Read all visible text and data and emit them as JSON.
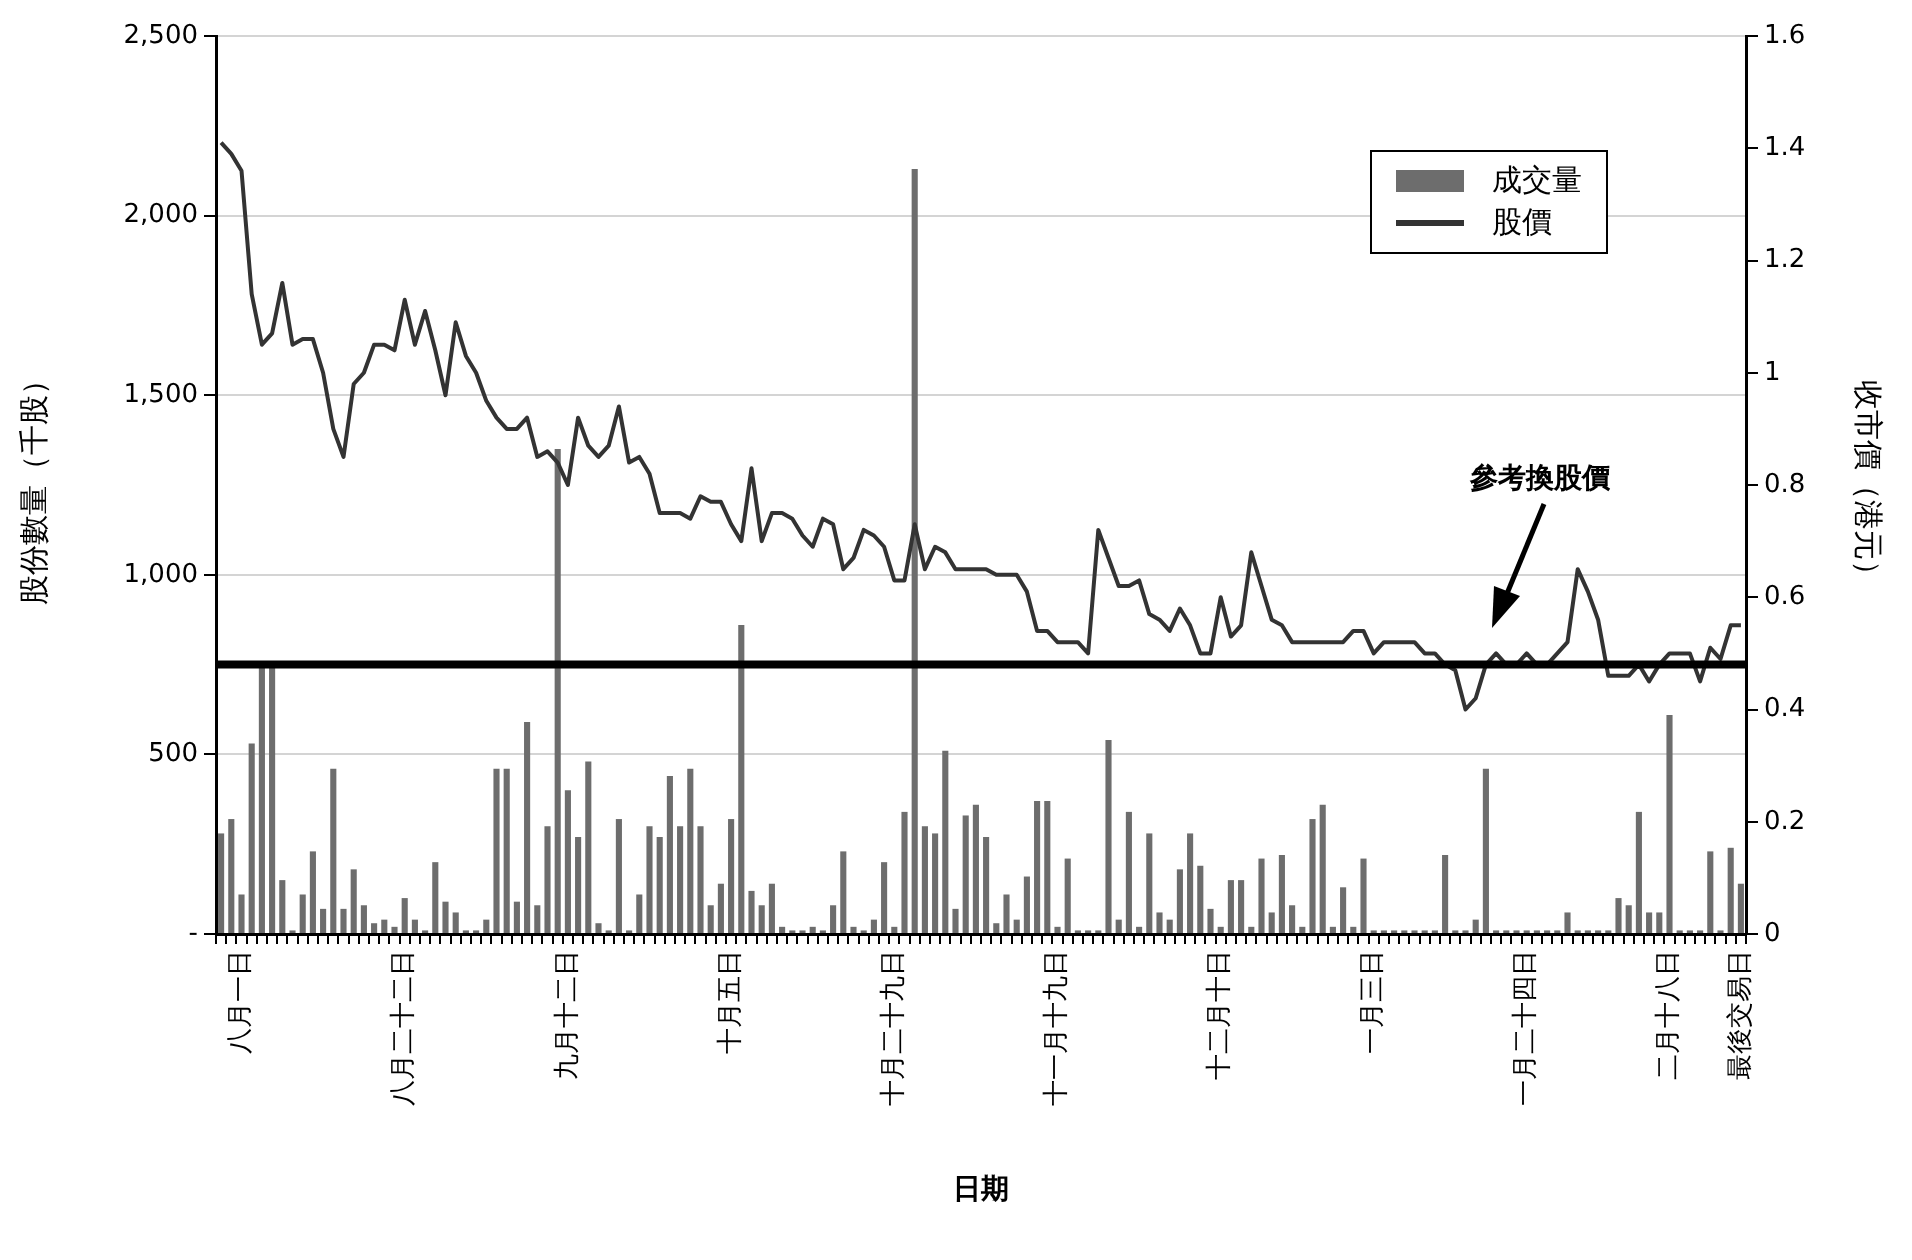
{
  "chart_data": {
    "type": "bar",
    "xlabel": "日期",
    "ylabel": "股份數量（千股）",
    "y2label": "收市價（港元）",
    "categories": [
      null,
      null,
      "八月一日",
      null,
      null,
      null,
      null,
      null,
      null,
      null,
      null,
      null,
      null,
      null,
      null,
      null,
      null,
      null,
      "八月二十二日",
      null,
      null,
      null,
      null,
      null,
      null,
      null,
      null,
      null,
      null,
      null,
      null,
      null,
      null,
      null,
      "九月十二日",
      null,
      null,
      null,
      null,
      null,
      null,
      null,
      null,
      null,
      null,
      null,
      null,
      null,
      null,
      null,
      "十月五日",
      null,
      null,
      null,
      null,
      null,
      null,
      null,
      null,
      null,
      null,
      null,
      null,
      null,
      null,
      null,
      "十月二十九日",
      null,
      null,
      null,
      null,
      null,
      null,
      null,
      null,
      null,
      null,
      null,
      null,
      null,
      null,
      null,
      "十一月十九日",
      null,
      null,
      null,
      null,
      null,
      null,
      null,
      null,
      null,
      null,
      null,
      null,
      null,
      null,
      null,
      "十二月十日",
      null,
      null,
      null,
      null,
      null,
      null,
      null,
      null,
      null,
      null,
      null,
      null,
      null,
      null,
      "一月三日",
      null,
      null,
      null,
      null,
      null,
      null,
      null,
      null,
      null,
      null,
      null,
      null,
      null,
      null,
      "一月二十四日",
      null,
      null,
      null,
      null,
      null,
      null,
      null,
      null,
      null,
      null,
      null,
      null,
      null,
      "二月十八日",
      null,
      null,
      null,
      null,
      null,
      null,
      "最後交易日"
    ],
    "series": [
      {
        "name": "成交量",
        "color": "#6d6d6d",
        "values": [
          280,
          320,
          110,
          530,
          750,
          750,
          150,
          10,
          110,
          230,
          70,
          460,
          70,
          180,
          80,
          30,
          40,
          20,
          100,
          40,
          10,
          200,
          90,
          60,
          10,
          10,
          40,
          460,
          460,
          90,
          590,
          80,
          300,
          1350,
          400,
          270,
          480,
          30,
          10,
          320,
          10,
          110,
          300,
          270,
          440,
          300,
          460,
          300,
          80,
          140,
          320,
          860,
          120,
          80,
          140,
          20,
          10,
          10,
          20,
          10,
          80,
          230,
          20,
          10,
          40,
          200,
          20,
          340,
          2130,
          300,
          280,
          510,
          70,
          330,
          360,
          270,
          30,
          110,
          40,
          160,
          370,
          370,
          20,
          210,
          10,
          10,
          10,
          540,
          40,
          340,
          20,
          280,
          60,
          40,
          180,
          280,
          190,
          70,
          20,
          150,
          150,
          20,
          210,
          60,
          220,
          80,
          20,
          320,
          360,
          20,
          130,
          20,
          210,
          10,
          10,
          10,
          10,
          10,
          10,
          10,
          220,
          10,
          10,
          40,
          460,
          10,
          10,
          10,
          10,
          10,
          10,
          10,
          60,
          10,
          10,
          10,
          10,
          100,
          80,
          340,
          60,
          60,
          610,
          10,
          10,
          10,
          230,
          10,
          240,
          140
        ]
      },
      {
        "name": "股價",
        "type": "line",
        "axis": "y2",
        "color": "#333333",
        "values": [
          1.41,
          1.39,
          1.36,
          1.14,
          1.05,
          1.07,
          1.16,
          1.05,
          1.06,
          1.06,
          1.0,
          0.9,
          0.85,
          0.98,
          1.0,
          1.05,
          1.05,
          1.04,
          1.13,
          1.05,
          1.11,
          1.04,
          0.96,
          1.09,
          1.03,
          1.0,
          0.95,
          0.92,
          0.9,
          0.9,
          0.92,
          0.85,
          0.86,
          0.84,
          0.8,
          0.92,
          0.87,
          0.85,
          0.87,
          0.94,
          0.84,
          0.85,
          0.82,
          0.75,
          0.75,
          0.75,
          0.74,
          0.78,
          0.77,
          0.77,
          0.73,
          0.7,
          0.83,
          0.7,
          0.75,
          0.75,
          0.74,
          0.71,
          0.69,
          0.74,
          0.73,
          0.65,
          0.67,
          0.72,
          0.71,
          0.69,
          0.63,
          0.63,
          0.73,
          0.65,
          0.69,
          0.68,
          0.65,
          0.65,
          0.65,
          0.65,
          0.64,
          0.64,
          0.64,
          0.61,
          0.54,
          0.54,
          0.52,
          0.52,
          0.52,
          0.5,
          0.72,
          0.67,
          0.62,
          0.62,
          0.63,
          0.57,
          0.56,
          0.54,
          0.58,
          0.55,
          0.5,
          0.5,
          0.6,
          0.53,
          0.55,
          0.68,
          0.62,
          0.56,
          0.55,
          0.52,
          0.52,
          0.52,
          0.52,
          0.52,
          0.52,
          0.54,
          0.54,
          0.5,
          0.52,
          0.52,
          0.52,
          0.52,
          0.5,
          0.5,
          0.48,
          0.47,
          0.4,
          0.42,
          0.48,
          0.5,
          0.48,
          0.48,
          0.5,
          0.48,
          0.48,
          0.5,
          0.52,
          0.65,
          0.61,
          0.56,
          0.46,
          0.46,
          0.46,
          0.48,
          0.45,
          0.48,
          0.5,
          0.5,
          0.5,
          0.45,
          0.51,
          0.49,
          0.55,
          0.55
        ]
      }
    ],
    "ylim": [
      0,
      2500
    ],
    "yticks": [
      {
        "value": 0,
        "label": "-"
      },
      500,
      {
        "value": 1000,
        "label": "1,000"
      },
      {
        "value": 1500,
        "label": "1,500"
      },
      {
        "value": 2000,
        "label": "2,000"
      },
      {
        "value": 2500,
        "label": "2,500"
      }
    ],
    "y2lim": [
      0,
      1.6
    ],
    "y2ticks": [
      0,
      0.2,
      0.4,
      0.6,
      0.8,
      1,
      1.2,
      1.4,
      1.6
    ],
    "ref_lines": [
      {
        "axis": "y2",
        "value": 0.48,
        "color": "#000000"
      }
    ],
    "annotations": [
      "參考換股價"
    ],
    "grid": "y",
    "legend": "top right"
  }
}
